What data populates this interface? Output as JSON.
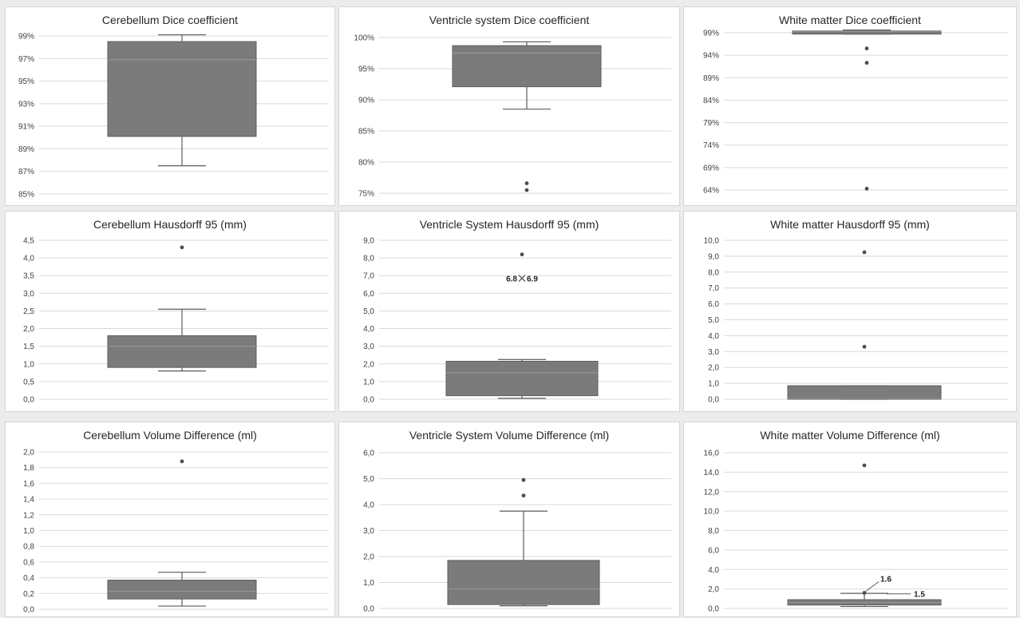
{
  "colors": {
    "box": "#7b7b7b",
    "box_stroke": "#5e5e5e",
    "whisker": "#5c5c5c",
    "point": "#4d4d4d",
    "grid": "#d9d9d9",
    "tick": "#404040",
    "title": "#262626",
    "annotation": "#222222"
  },
  "chart_data": [
    {
      "type": "box",
      "title": "Cerebellum Dice coefficient",
      "ytick_labels": [
        "85%",
        "87%",
        "89%",
        "91%",
        "93%",
        "95%",
        "97%",
        "99%"
      ],
      "ylim": [
        85,
        100
      ],
      "grid": true,
      "box": {
        "whisker_low": 87.5,
        "q1": 90.1,
        "median": 96.9,
        "q3": 98.5,
        "whisker_high": 99.1
      },
      "outliers": [],
      "annotations": []
    },
    {
      "type": "box",
      "title": "Ventricle system Dice coefficient",
      "ytick_labels": [
        "75%",
        "80%",
        "85%",
        "90%",
        "95%",
        "100%"
      ],
      "ylim": [
        75,
        100
      ],
      "grid": true,
      "box": {
        "whisker_low": 88.5,
        "q1": 92.1,
        "median": 97.5,
        "q3": 98.7,
        "whisker_high": 99.3
      },
      "outliers": [
        76.6,
        75.5
      ],
      "annotations": []
    },
    {
      "type": "box",
      "title": "White matter Dice coefficient",
      "ytick_labels": [
        "64%",
        "69%",
        "74%",
        "79%",
        "84%",
        "89%",
        "94%",
        "99%"
      ],
      "ylim": [
        64,
        99.5
      ],
      "grid": true,
      "box": {
        "whisker_low": 98.7,
        "q1": 98.7,
        "median": 99.3,
        "q3": 99.4,
        "whisker_high": 99.6
      },
      "outliers": [
        95.5,
        92.3,
        64.3
      ],
      "annotations": []
    },
    {
      "type": "box",
      "title": "Cerebellum Hausdorff 95 (mm)",
      "ytick_labels": [
        "0,0",
        "0,5",
        "1,0",
        "1,5",
        "2,0",
        "2,5",
        "3,0",
        "3,5",
        "4,0",
        "4,5"
      ],
      "ylim": [
        0,
        4.5
      ],
      "grid": true,
      "box": {
        "whisker_low": 0.8,
        "q1": 0.9,
        "median": 1.5,
        "q3": 1.8,
        "whisker_high": 2.55
      },
      "outliers": [
        4.3
      ],
      "annotations": []
    },
    {
      "type": "box",
      "title": "Ventricle System Hausdorff 95 (mm)",
      "ytick_labels": [
        "0,0",
        "1,0",
        "2,0",
        "3,0",
        "4,0",
        "5,0",
        "6,0",
        "7,0",
        "8,0",
        "9,0"
      ],
      "ylim": [
        0,
        9
      ],
      "grid": true,
      "box": {
        "whisker_low": 0.05,
        "q1": 0.2,
        "median": 1.5,
        "q3": 2.15,
        "whisker_high": 2.25
      },
      "outliers": [
        8.2
      ],
      "mean": 6.85,
      "annotations": [
        {
          "text": "6.8",
          "y": 6.85,
          "side": "left"
        },
        {
          "text": "6.9",
          "y": 6.85,
          "side": "right"
        }
      ]
    },
    {
      "type": "box",
      "title": "White matter Hausdorff 95 (mm)",
      "ytick_labels": [
        "0,0",
        "1,0",
        "2,0",
        "3,0",
        "4,0",
        "5,0",
        "6,0",
        "7,0",
        "8,0",
        "9,0",
        "10,0"
      ],
      "ylim": [
        0,
        10
      ],
      "grid": true,
      "box": {
        "whisker_low": 0.0,
        "q1": 0.0,
        "median": 0.05,
        "q3": 0.85,
        "whisker_high": 0.85
      },
      "outliers": [
        9.25,
        3.3
      ],
      "annotations": []
    },
    {
      "type": "box",
      "title": "Cerebellum Volume Difference (ml)",
      "ytick_labels": [
        "0,0",
        "0,2",
        "0,4",
        "0,6",
        "0,8",
        "1,0",
        "1,2",
        "1,4",
        "1,6",
        "1,8",
        "2,0"
      ],
      "ylim": [
        0,
        2
      ],
      "grid": true,
      "box": {
        "whisker_low": 0.04,
        "q1": 0.13,
        "median": 0.23,
        "q3": 0.37,
        "whisker_high": 0.47
      },
      "outliers": [
        1.88
      ],
      "annotations": []
    },
    {
      "type": "box",
      "title": "Ventricle System Volume Difference (ml)",
      "ytick_labels": [
        "0,0",
        "1,0",
        "2,0",
        "3,0",
        "4,0",
        "5,0",
        "6,0"
      ],
      "ylim": [
        0,
        6
      ],
      "grid": true,
      "box": {
        "whisker_low": 0.1,
        "q1": 0.15,
        "median": 0.75,
        "q3": 1.85,
        "whisker_high": 3.75
      },
      "outliers": [
        4.95,
        4.35
      ],
      "annotations": []
    },
    {
      "type": "box",
      "title": "White matter Volume Difference (ml)",
      "ytick_labels": [
        "0,0",
        "2,0",
        "4,0",
        "6,0",
        "8,0",
        "10,0",
        "12,0",
        "14,0",
        "16,0"
      ],
      "ylim": [
        0,
        16
      ],
      "grid": true,
      "box": {
        "whisker_low": 0.2,
        "q1": 0.35,
        "median": 0.6,
        "q3": 0.9,
        "whisker_high": 1.55
      },
      "outliers": [
        14.7,
        1.6
      ],
      "annotations": [
        {
          "text": "1.6",
          "y": 1.6,
          "side": "right-up"
        },
        {
          "text": "1.5",
          "y": 1.5,
          "side": "right"
        }
      ]
    }
  ]
}
